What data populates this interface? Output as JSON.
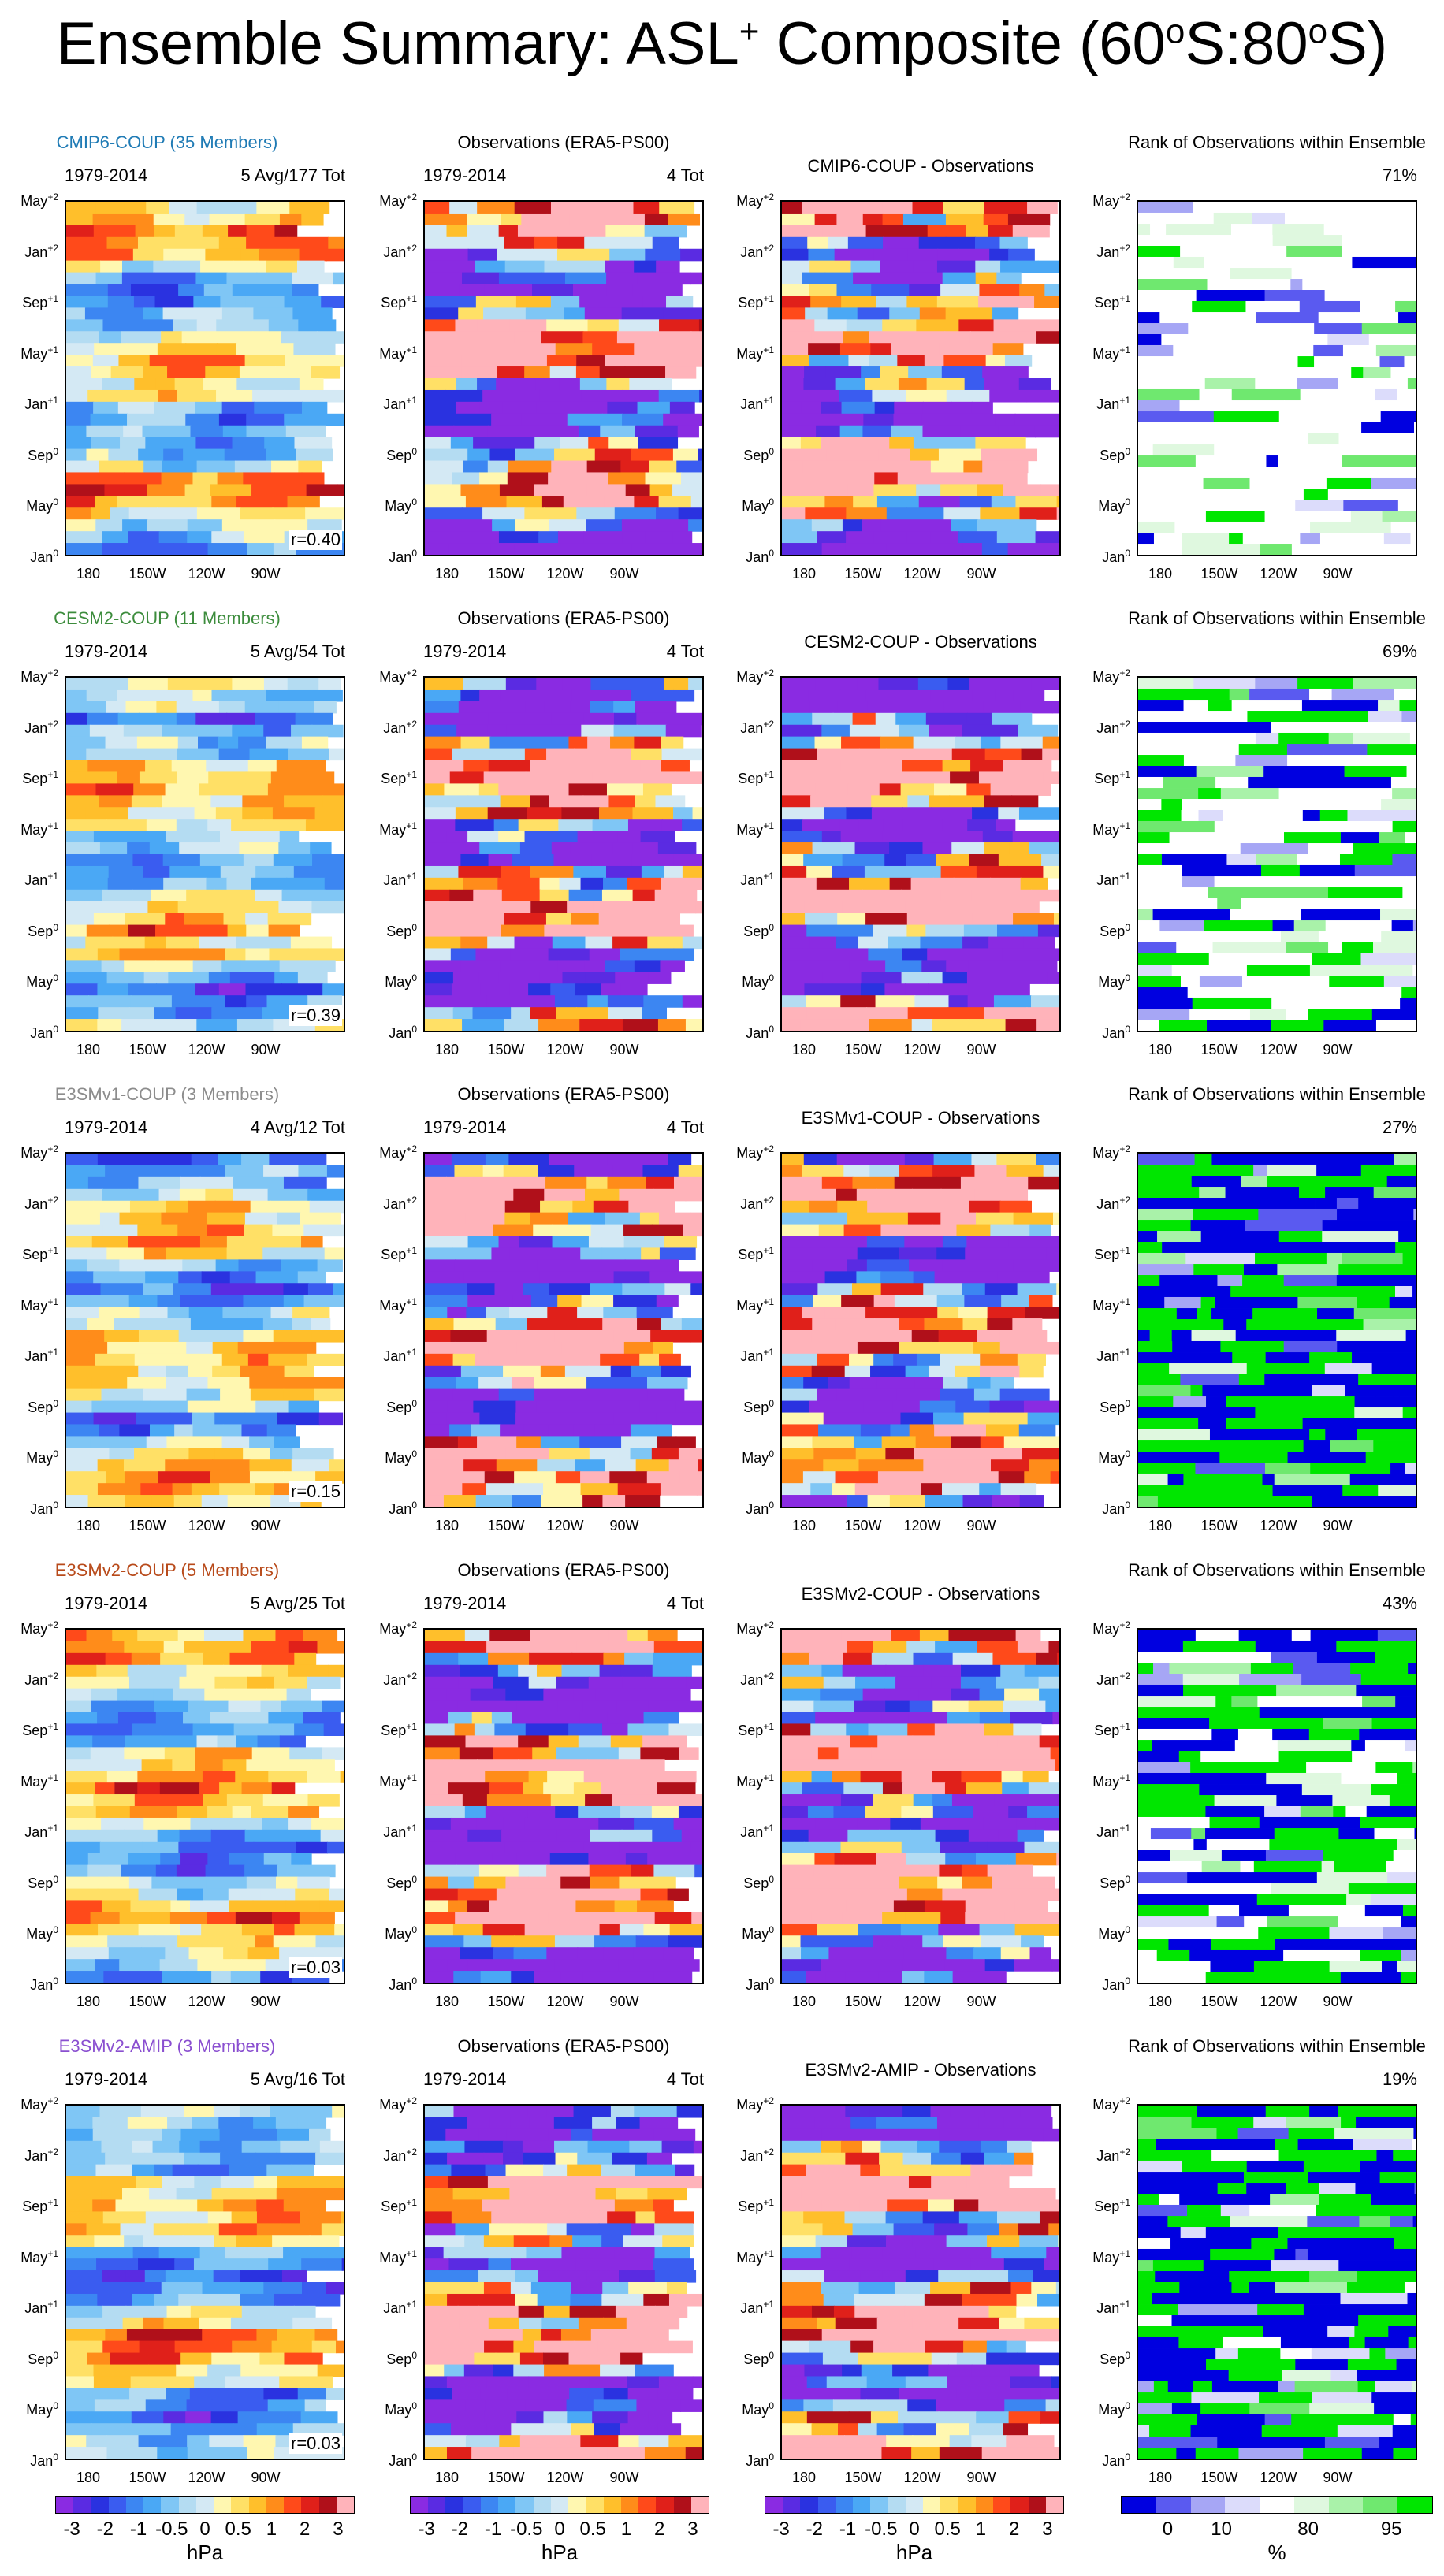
{
  "title": {
    "main": "Ensemble Summary: ASL",
    "sup1": "+",
    "rest": " Composite (60",
    "sup2": "o",
    "mid": "S:80",
    "sup3": "o",
    "end": "S)"
  },
  "colors": {
    "contour_palette": [
      "#8a2be2",
      "#5a2be2",
      "#2a32e0",
      "#3a5cf0",
      "#3c86f2",
      "#4aa8f5",
      "#7fc6f5",
      "#b4dcf2",
      "#d4e9f4",
      "#fff7b0",
      "#ffe066",
      "#ffbf2b",
      "#ff8c1a",
      "#ff4a1a",
      "#e0201a",
      "#b0101a",
      "#ffb3ba"
    ],
    "rank_palette": [
      "#0000e0",
      "#5a5af0",
      "#a6a6f5",
      "#dcdcfb",
      "#ffffff",
      "#dff8df",
      "#a9f2a9",
      "#6fe86f",
      "#00e600"
    ],
    "model_title_colors": [
      "#1f7bb5",
      "#3c8c3c",
      "#8c8c8c",
      "#b84a1a",
      "#8a4fd0"
    ]
  },
  "y_ticks": [
    "May+2",
    "Jan+2",
    "Sep+1",
    "May+1",
    "Jan+1",
    "Sep0",
    "May0",
    "Jan0"
  ],
  "y_ticks_display": [
    {
      "m": "May",
      "s": "+2"
    },
    {
      "m": "Jan",
      "s": "+2"
    },
    {
      "m": "Sep",
      "s": "+1"
    },
    {
      "m": "May",
      "s": "+1"
    },
    {
      "m": "Jan",
      "s": "+1"
    },
    {
      "m": "Sep",
      "s": "0"
    },
    {
      "m": "May",
      "s": "0"
    },
    {
      "m": "Jan",
      "s": "0"
    }
  ],
  "x_ticks": [
    "180",
    "150W",
    "120W",
    "90W"
  ],
  "rows": [
    {
      "model_title": "CMIP6-COUP (35 Members)",
      "years": "1979-2014",
      "model_count": "5 Avg/177 Tot",
      "corr": "r=0.40",
      "obs_title": "Observations (ERA5-PS00)",
      "obs_count": "4 Tot",
      "diff_title": "CMIP6-COUP - Observations",
      "rank_title": "Rank of Observations within Ensemble",
      "rank_pct": "71%"
    },
    {
      "model_title": "CESM2-COUP (11 Members)",
      "years": "1979-2014",
      "model_count": "5 Avg/54 Tot",
      "corr": "r=0.39",
      "obs_title": "Observations (ERA5-PS00)",
      "obs_count": "4 Tot",
      "diff_title": "CESM2-COUP - Observations",
      "rank_title": "Rank of Observations within Ensemble",
      "rank_pct": "69%"
    },
    {
      "model_title": "E3SMv1-COUP (3 Members)",
      "years": "1979-2014",
      "model_count": "4 Avg/12 Tot",
      "corr": "r=0.15",
      "obs_title": "Observations (ERA5-PS00)",
      "obs_count": "4 Tot",
      "diff_title": "E3SMv1-COUP - Observations",
      "rank_title": "Rank of Observations within Ensemble",
      "rank_pct": "27%"
    },
    {
      "model_title": "E3SMv2-COUP (5 Members)",
      "years": "1979-2014",
      "model_count": "5 Avg/25 Tot",
      "corr": "r=0.03",
      "obs_title": "Observations (ERA5-PS00)",
      "obs_count": "4 Tot",
      "diff_title": "E3SMv2-COUP - Observations",
      "rank_title": "Rank of Observations within Ensemble",
      "rank_pct": "43%"
    },
    {
      "model_title": "E3SMv2-AMIP (3 Members)",
      "years": "1979-2014",
      "model_count": "5 Avg/16 Tot",
      "corr": "r=0.03",
      "obs_title": "Observations (ERA5-PS00)",
      "obs_count": "4 Tot",
      "diff_title": "E3SMv2-AMIP - Observations",
      "rank_title": "Rank of Observations within Ensemble",
      "rank_pct": "19%"
    }
  ],
  "colorbars": {
    "hpa_labels": [
      "-3",
      "-2",
      "-1",
      "-0.5",
      "0",
      "0.5",
      "1",
      "2",
      "3"
    ],
    "hpa_unit": "hPa",
    "rank_labels": [
      "0",
      "10",
      "80",
      "95"
    ],
    "rank_unit": "%"
  },
  "chart_data": [
    {
      "type": "heatmap",
      "panel": "model composite",
      "rows": 5,
      "xlabel": "",
      "ylabel": "",
      "x_categories": [
        "180",
        "150W",
        "120W",
        "90W"
      ],
      "y_categories": [
        "Jan0",
        "May0",
        "Sep0",
        "Jan+1",
        "May+1",
        "Sep+1",
        "Jan+2",
        "May+2"
      ],
      "value_unit": "hPa",
      "levels": [
        -3,
        -2,
        -1,
        -0.5,
        0,
        0.5,
        1,
        2,
        3
      ],
      "corr": [
        0.4,
        0.39,
        0.15,
        0.03,
        0.03
      ]
    },
    {
      "type": "heatmap",
      "panel": "observations",
      "rows": 5,
      "x_categories": [
        "180",
        "150W",
        "120W",
        "90W"
      ],
      "y_categories": [
        "Jan0",
        "May0",
        "Sep0",
        "Jan+1",
        "May+1",
        "Sep+1",
        "Jan+2",
        "May+2"
      ],
      "value_unit": "hPa",
      "levels": [
        -3,
        -2,
        -1,
        -0.5,
        0,
        0.5,
        1,
        2,
        3
      ]
    },
    {
      "type": "heatmap",
      "panel": "model minus observations",
      "rows": 5,
      "x_categories": [
        "180",
        "150W",
        "120W",
        "90W"
      ],
      "y_categories": [
        "Jan0",
        "May0",
        "Sep0",
        "Jan+1",
        "May+1",
        "Sep+1",
        "Jan+2",
        "May+2"
      ],
      "value_unit": "hPa",
      "levels": [
        -3,
        -2,
        -1,
        -0.5,
        0,
        0.5,
        1,
        2,
        3
      ]
    },
    {
      "type": "heatmap",
      "panel": "rank of observations within ensemble",
      "rows": 5,
      "x_categories": [
        "180",
        "150W",
        "120W",
        "90W"
      ],
      "y_categories": [
        "Jan0",
        "May0",
        "Sep0",
        "Jan+1",
        "May+1",
        "Sep+1",
        "Jan+2",
        "May+2"
      ],
      "value_unit": "%",
      "levels": [
        0,
        10,
        80,
        95
      ],
      "summary_percent": [
        71,
        69,
        27,
        43,
        19
      ]
    }
  ]
}
